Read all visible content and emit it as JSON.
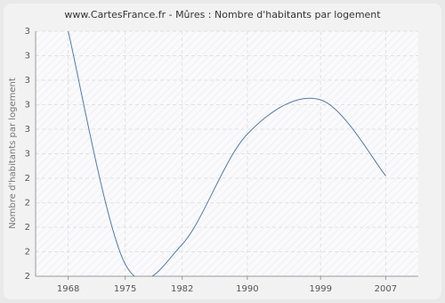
{
  "chart_data": {
    "type": "line",
    "title": "www.CartesFrance.fr - Mûres : Nombre d'habitants par logement",
    "y_label": "Nombre d'habitants par logement",
    "x": [
      1968,
      1975,
      1982,
      1990,
      1999,
      2007
    ],
    "series": [
      {
        "name": "Nombre d'habitants par logement",
        "color": "#4f7bb0",
        "values": [
          3.0,
          2.05,
          2.13,
          2.58,
          2.72,
          2.41
        ]
      }
    ],
    "xlim": [
      1964,
      2011
    ],
    "xticks": [
      1968,
      1975,
      1982,
      1990,
      1999,
      2007
    ],
    "ylim": [
      2.0,
      3.0
    ],
    "yticks": [
      {
        "value": 2.0,
        "label": "2"
      },
      {
        "value": 2.1,
        "label": "2"
      },
      {
        "value": 2.2,
        "label": "2"
      },
      {
        "value": 2.3,
        "label": "2"
      },
      {
        "value": 2.4,
        "label": "2"
      },
      {
        "value": 2.5,
        "label": "3"
      },
      {
        "value": 2.6,
        "label": "3"
      },
      {
        "value": 2.7,
        "label": "3"
      },
      {
        "value": 2.8,
        "label": "3"
      },
      {
        "value": 2.9,
        "label": "3"
      },
      {
        "value": 3.0,
        "label": "3"
      }
    ],
    "grid": true
  }
}
